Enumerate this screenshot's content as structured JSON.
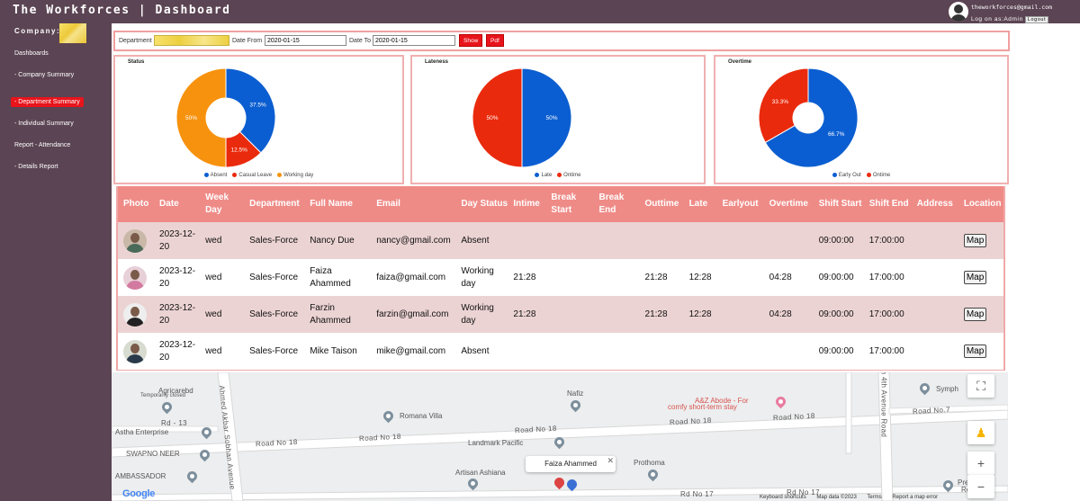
{
  "header": {
    "title": "The Workforces | Dashboard",
    "user_email": "theworkforces@gmail.com",
    "login_text": "Log on as:Admin",
    "logout_label": "Logout"
  },
  "sidebar": {
    "company_label": "Company:",
    "items": [
      {
        "label": "Dashboards"
      },
      {
        "label": "- Company Summary"
      },
      {
        "label": "- Department Summary"
      },
      {
        "label": "- Individual Summary"
      },
      {
        "label": "Report - Attendance"
      },
      {
        "label": "- Details Report"
      }
    ]
  },
  "filters": {
    "department_label": "Department",
    "date_from_label": "Date From",
    "date_from_value": "2020-01-15",
    "date_to_label": "Date To",
    "date_to_value": "2020-01-15",
    "show_label": "Show",
    "pdf_label": "Pdf"
  },
  "chart_data": [
    {
      "type": "pie",
      "title": "Status",
      "slices": [
        {
          "label": "Absent",
          "value": 37.5,
          "display": "37.5%",
          "color": "#0b5ed1"
        },
        {
          "label": "Casual Leave",
          "value": 12.5,
          "display": "12.5%",
          "color": "#ea2a0c"
        },
        {
          "label": "Working day",
          "value": 50,
          "display": "50%",
          "color": "#f7920e"
        }
      ]
    },
    {
      "type": "pie",
      "title": "Lateness",
      "slices": [
        {
          "label": "Late",
          "value": 50,
          "display": "50%",
          "color": "#0b5ed1"
        },
        {
          "label": "Ontime",
          "value": 50,
          "display": "50%",
          "color": "#ea2a0c"
        }
      ]
    },
    {
      "type": "pie",
      "title": "Overtime",
      "slices": [
        {
          "label": "Early Out",
          "value": 66.7,
          "display": "66.7%",
          "color": "#0b5ed1"
        },
        {
          "label": "Ontime",
          "value": 33.3,
          "display": "33.3%",
          "color": "#ea2a0c"
        }
      ]
    }
  ],
  "table": {
    "headers": [
      "Photo",
      "Date",
      "Week Day",
      "Department",
      "Full Name",
      "Email",
      "Day Status",
      "Intime",
      "Break Start",
      "Break End",
      "Outtime",
      "Late",
      "Earlyout",
      "Overtime",
      "Shift Start",
      "Shift End",
      "Address",
      "Location"
    ],
    "map_label": "Map",
    "rows": [
      {
        "date": "2023-12-20",
        "week_day": "wed",
        "department": "Sales-Force",
        "full_name": "Nancy Due",
        "email": "nancy@gmail.com",
        "day_status": "Absent",
        "intime": "",
        "break_start": "",
        "break_end": "",
        "outtime": "",
        "late": "",
        "earlyout": "",
        "overtime": "",
        "shift_start": "09:00:00",
        "shift_end": "17:00:00",
        "address": ""
      },
      {
        "date": "2023-12-20",
        "week_day": "wed",
        "department": "Sales-Force",
        "full_name": "Faiza Ahammed",
        "email": "faiza@gmail.com",
        "day_status": "Working day",
        "intime": "21:28",
        "break_start": "",
        "break_end": "",
        "outtime": "21:28",
        "late": "12:28",
        "earlyout": "",
        "overtime": "04:28",
        "shift_start": "09:00:00",
        "shift_end": "17:00:00",
        "address": ""
      },
      {
        "date": "2023-12-20",
        "week_day": "wed",
        "department": "Sales-Force",
        "full_name": "Farzin Ahammed",
        "email": "farzin@gmail.com",
        "day_status": "Working day",
        "intime": "21:28",
        "break_start": "",
        "break_end": "",
        "outtime": "21:28",
        "late": "12:28",
        "earlyout": "",
        "overtime": "04:28",
        "shift_start": "09:00:00",
        "shift_end": "17:00:00",
        "address": ""
      },
      {
        "date": "2023-12-20",
        "week_day": "wed",
        "department": "Sales-Force",
        "full_name": "Mike Taison",
        "email": "mike@gmail.com",
        "day_status": "Absent",
        "intime": "",
        "break_start": "",
        "break_end": "",
        "outtime": "",
        "late": "",
        "earlyout": "",
        "overtime": "",
        "shift_start": "09:00:00",
        "shift_end": "17:00:00",
        "address": ""
      }
    ]
  },
  "map": {
    "popup_name": "Faiza Ahammed",
    "roads": [
      "Rd - 13",
      "Road No 18",
      "Road No 18",
      "Road No 18",
      "Road No 18",
      "Road No 18",
      "Road No.7",
      "Rd No 17",
      "Rd No 17",
      "Ahmed Akbar Sobhan Avenue",
      "an 4th Avenue Road"
    ],
    "places": [
      "Agricarebd",
      "Temporarily closed",
      "Astha Enterprise",
      "SWAPNO NEER",
      "AMBASSADOR",
      "Romana Villa",
      "Nafiz",
      "A&Z Abode - For",
      "comfy short-term stay",
      "Landmark Pacific",
      "Artisan Ashiana",
      "Prothoma",
      "Symph",
      "Premi",
      "Rental"
    ],
    "footer": [
      "Keyboard shortcuts",
      "Map data ©2023",
      "Terms",
      "Report a map error"
    ],
    "google": "Google"
  }
}
